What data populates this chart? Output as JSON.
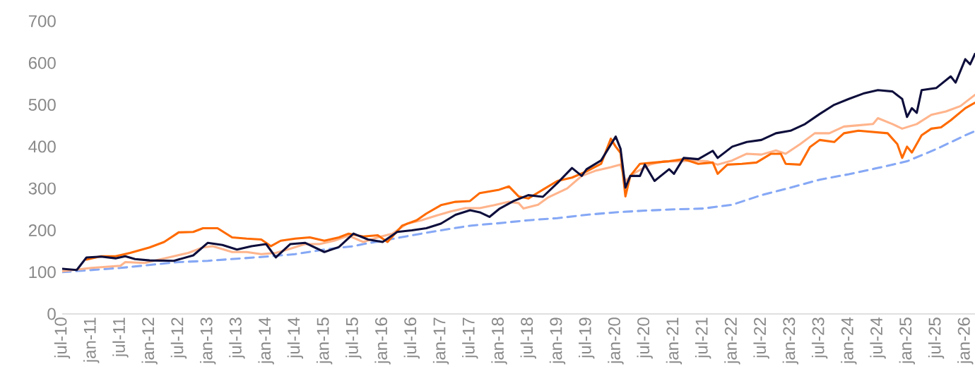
{
  "chart_data": {
    "type": "line",
    "xlim": [
      "2010-07",
      "2026-03"
    ],
    "ylim": [
      0,
      700
    ],
    "yticks": [
      0,
      100,
      200,
      300,
      400,
      500,
      600,
      700
    ],
    "xticks": [
      {
        "value": "2010-07",
        "label": "jul-10"
      },
      {
        "value": "2011-01",
        "label": "jan-11"
      },
      {
        "value": "2011-07",
        "label": "jul-11"
      },
      {
        "value": "2012-01",
        "label": "jan-12"
      },
      {
        "value": "2012-07",
        "label": "jul-12"
      },
      {
        "value": "2013-01",
        "label": "jan-13"
      },
      {
        "value": "2013-07",
        "label": "jul-13"
      },
      {
        "value": "2014-01",
        "label": "jan-14"
      },
      {
        "value": "2014-07",
        "label": "jul-14"
      },
      {
        "value": "2015-01",
        "label": "jan-15"
      },
      {
        "value": "2015-07",
        "label": "jul-15"
      },
      {
        "value": "2016-01",
        "label": "jan-16"
      },
      {
        "value": "2016-07",
        "label": "jul-16"
      },
      {
        "value": "2017-01",
        "label": "jan-17"
      },
      {
        "value": "2017-07",
        "label": "jul-17"
      },
      {
        "value": "2018-01",
        "label": "jan-18"
      },
      {
        "value": "2018-07",
        "label": "jul-18"
      },
      {
        "value": "2019-01",
        "label": "jan-19"
      },
      {
        "value": "2019-07",
        "label": "jul-19"
      },
      {
        "value": "2020-01",
        "label": "jan-20"
      },
      {
        "value": "2020-07",
        "label": "jul-20"
      },
      {
        "value": "2021-01",
        "label": "jan-21"
      },
      {
        "value": "2021-07",
        "label": "jul-21"
      },
      {
        "value": "2022-01",
        "label": "jan-22"
      },
      {
        "value": "2022-07",
        "label": "jul-22"
      },
      {
        "value": "2023-01",
        "label": "jan-23"
      },
      {
        "value": "2023-07",
        "label": "jul-23"
      },
      {
        "value": "2024-01",
        "label": "jan-24"
      },
      {
        "value": "2024-07",
        "label": "jul-24"
      },
      {
        "value": "2025-01",
        "label": "jan-25"
      },
      {
        "value": "2025-07",
        "label": "jul-25"
      },
      {
        "value": "2026-01",
        "label": "jan-26"
      }
    ],
    "series": [
      {
        "color": "#86a8f5",
        "line_style": "dashed",
        "x": [
          "2010-07",
          "2011-07",
          "2012-07",
          "2013-01",
          "2013-07",
          "2014-01",
          "2014-07",
          "2015-01",
          "2015-07",
          "2015-09",
          "2016-01",
          "2016-07",
          "2017-01",
          "2017-07",
          "2018-01",
          "2018-07",
          "2019-01",
          "2019-07",
          "2020-01",
          "2020-07",
          "2021-01",
          "2021-07",
          "2022-01",
          "2022-07",
          "2023-01",
          "2023-07",
          "2024-01",
          "2024-07",
          "2025-01",
          "2025-07",
          "2026-01",
          "2026-03"
        ],
        "values": [
          100,
          110,
          124,
          127,
          132,
          137,
          143,
          154,
          162,
          167,
          175,
          188,
          200,
          211,
          217,
          224,
          229,
          237,
          243,
          247,
          250,
          252,
          261,
          284,
          302,
          321,
          334,
          349,
          365,
          394,
          427,
          437
        ]
      },
      {
        "color": "#ffb48c",
        "line_style": "solid",
        "x": [
          "2010-07",
          "2011-01",
          "2011-07",
          "2011-08",
          "2011-12",
          "2012-06",
          "2012-09",
          "2012-12",
          "2013-02",
          "2013-06",
          "2013-09",
          "2013-12",
          "2014-03",
          "2014-06",
          "2014-09",
          "2014-12",
          "2015-03",
          "2015-06",
          "2015-09",
          "2015-12",
          "2016-03",
          "2016-06",
          "2016-09",
          "2016-12",
          "2017-03",
          "2017-06",
          "2017-09",
          "2017-12",
          "2018-03",
          "2018-05",
          "2018-06",
          "2018-09",
          "2018-11",
          "2019-03",
          "2019-06",
          "2019-09",
          "2019-12",
          "2020-02",
          "2020-03",
          "2020-05",
          "2020-08",
          "2020-11",
          "2021-02",
          "2021-05",
          "2021-08",
          "2021-10",
          "2022-01",
          "2022-04",
          "2022-07",
          "2022-10",
          "2022-12",
          "2023-03",
          "2023-06",
          "2023-09",
          "2023-12",
          "2024-03",
          "2024-06",
          "2024-07",
          "2024-10",
          "2024-12",
          "2025-03",
          "2025-06",
          "2025-09",
          "2025-12",
          "2026-03"
        ],
        "values": [
          102,
          110,
          115,
          124,
          122,
          138,
          146,
          159,
          162,
          148,
          148,
          143,
          146,
          156,
          167,
          167,
          175,
          187,
          172,
          183,
          192,
          216,
          224,
          235,
          245,
          253,
          253,
          260,
          268,
          265,
          252,
          261,
          278,
          300,
          330,
          343,
          351,
          357,
          318,
          338,
          357,
          365,
          365,
          367,
          365,
          357,
          367,
          383,
          381,
          391,
          383,
          406,
          432,
          432,
          448,
          451,
          454,
          468,
          454,
          443,
          454,
          476,
          484,
          497,
          524
        ]
      },
      {
        "color": "#ff6a00",
        "line_style": "solid",
        "x": [
          "2010-12",
          "2011-03",
          "2011-06",
          "2011-09",
          "2012-01",
          "2012-04",
          "2012-07",
          "2012-10",
          "2012-12",
          "2013-03",
          "2013-06",
          "2013-09",
          "2013-12",
          "2014-02",
          "2014-04",
          "2014-07",
          "2014-10",
          "2015-01",
          "2015-04",
          "2015-06",
          "2015-09",
          "2015-12",
          "2016-02",
          "2016-05",
          "2016-08",
          "2016-10",
          "2017-01",
          "2017-04",
          "2017-07",
          "2017-09",
          "2018-01",
          "2018-03",
          "2018-05",
          "2018-07",
          "2018-10",
          "2019-01",
          "2019-04",
          "2019-07",
          "2019-10",
          "2019-12",
          "2020-01",
          "2020-02",
          "2020-03",
          "2020-04",
          "2020-06",
          "2020-09",
          "2020-12",
          "2021-03",
          "2021-06",
          "2021-09",
          "2021-10",
          "2021-12",
          "2022-03",
          "2022-06",
          "2022-09",
          "2022-11",
          "2022-12",
          "2023-03",
          "2023-05",
          "2023-07",
          "2023-10",
          "2023-12",
          "2024-03",
          "2024-06",
          "2024-09",
          "2024-11",
          "2024-12",
          "2025-01",
          "2025-02",
          "2025-04",
          "2025-06",
          "2025-08",
          "2025-10",
          "2026-01",
          "2026-03"
        ],
        "values": [
          130,
          138,
          138,
          146,
          159,
          172,
          195,
          196,
          205,
          205,
          183,
          180,
          178,
          162,
          175,
          180,
          183,
          175,
          183,
          192,
          185,
          188,
          172,
          211,
          224,
          240,
          260,
          268,
          270,
          289,
          297,
          305,
          281,
          276,
          297,
          318,
          326,
          341,
          359,
          419,
          400,
          385,
          281,
          330,
          359,
          362,
          365,
          370,
          359,
          362,
          335,
          357,
          359,
          362,
          383,
          383,
          359,
          357,
          399,
          416,
          411,
          432,
          438,
          435,
          432,
          406,
          373,
          400,
          386,
          427,
          443,
          446,
          463,
          492,
          505
        ]
      },
      {
        "color": "#0e0e3c",
        "line_style": "solid",
        "x": [
          "2010-07",
          "2010-10",
          "2010-12",
          "2011-03",
          "2011-06",
          "2011-08",
          "2011-10",
          "2012-01",
          "2012-06",
          "2012-10",
          "2013-01",
          "2013-04",
          "2013-07",
          "2013-10",
          "2014-01",
          "2014-03",
          "2014-06",
          "2014-09",
          "2015-01",
          "2015-04",
          "2015-07",
          "2015-10",
          "2016-01",
          "2016-04",
          "2016-07",
          "2016-10",
          "2017-01",
          "2017-04",
          "2017-07",
          "2017-09",
          "2017-11",
          "2018-01",
          "2018-04",
          "2018-07",
          "2018-10",
          "2019-01",
          "2019-04",
          "2019-06",
          "2019-07",
          "2019-10",
          "2020-01",
          "2020-02",
          "2020-03",
          "2020-04",
          "2020-06",
          "2020-07",
          "2020-09",
          "2020-12",
          "2021-01",
          "2021-03",
          "2021-06",
          "2021-09",
          "2021-10",
          "2022-01",
          "2022-04",
          "2022-07",
          "2022-10",
          "2023-01",
          "2023-04",
          "2023-07",
          "2023-10",
          "2024-01",
          "2024-04",
          "2024-07",
          "2024-10",
          "2024-12",
          "2025-01",
          "2025-02",
          "2025-03",
          "2025-04",
          "2025-07",
          "2025-10",
          "2025-11",
          "2026-01",
          "2026-02",
          "2026-03"
        ],
        "values": [
          108,
          105,
          135,
          137,
          133,
          138,
          131,
          128,
          127,
          140,
          170,
          165,
          154,
          162,
          167,
          135,
          167,
          170,
          148,
          160,
          192,
          178,
          172,
          196,
          200,
          205,
          216,
          237,
          248,
          243,
          232,
          251,
          270,
          284,
          280,
          313,
          349,
          330,
          346,
          367,
          424,
          395,
          302,
          330,
          330,
          357,
          318,
          346,
          335,
          373,
          370,
          390,
          373,
          400,
          411,
          416,
          432,
          438,
          454,
          478,
          500,
          514,
          527,
          535,
          532,
          514,
          471,
          492,
          481,
          535,
          540,
          568,
          553,
          609,
          597,
          622
        ]
      }
    ]
  }
}
